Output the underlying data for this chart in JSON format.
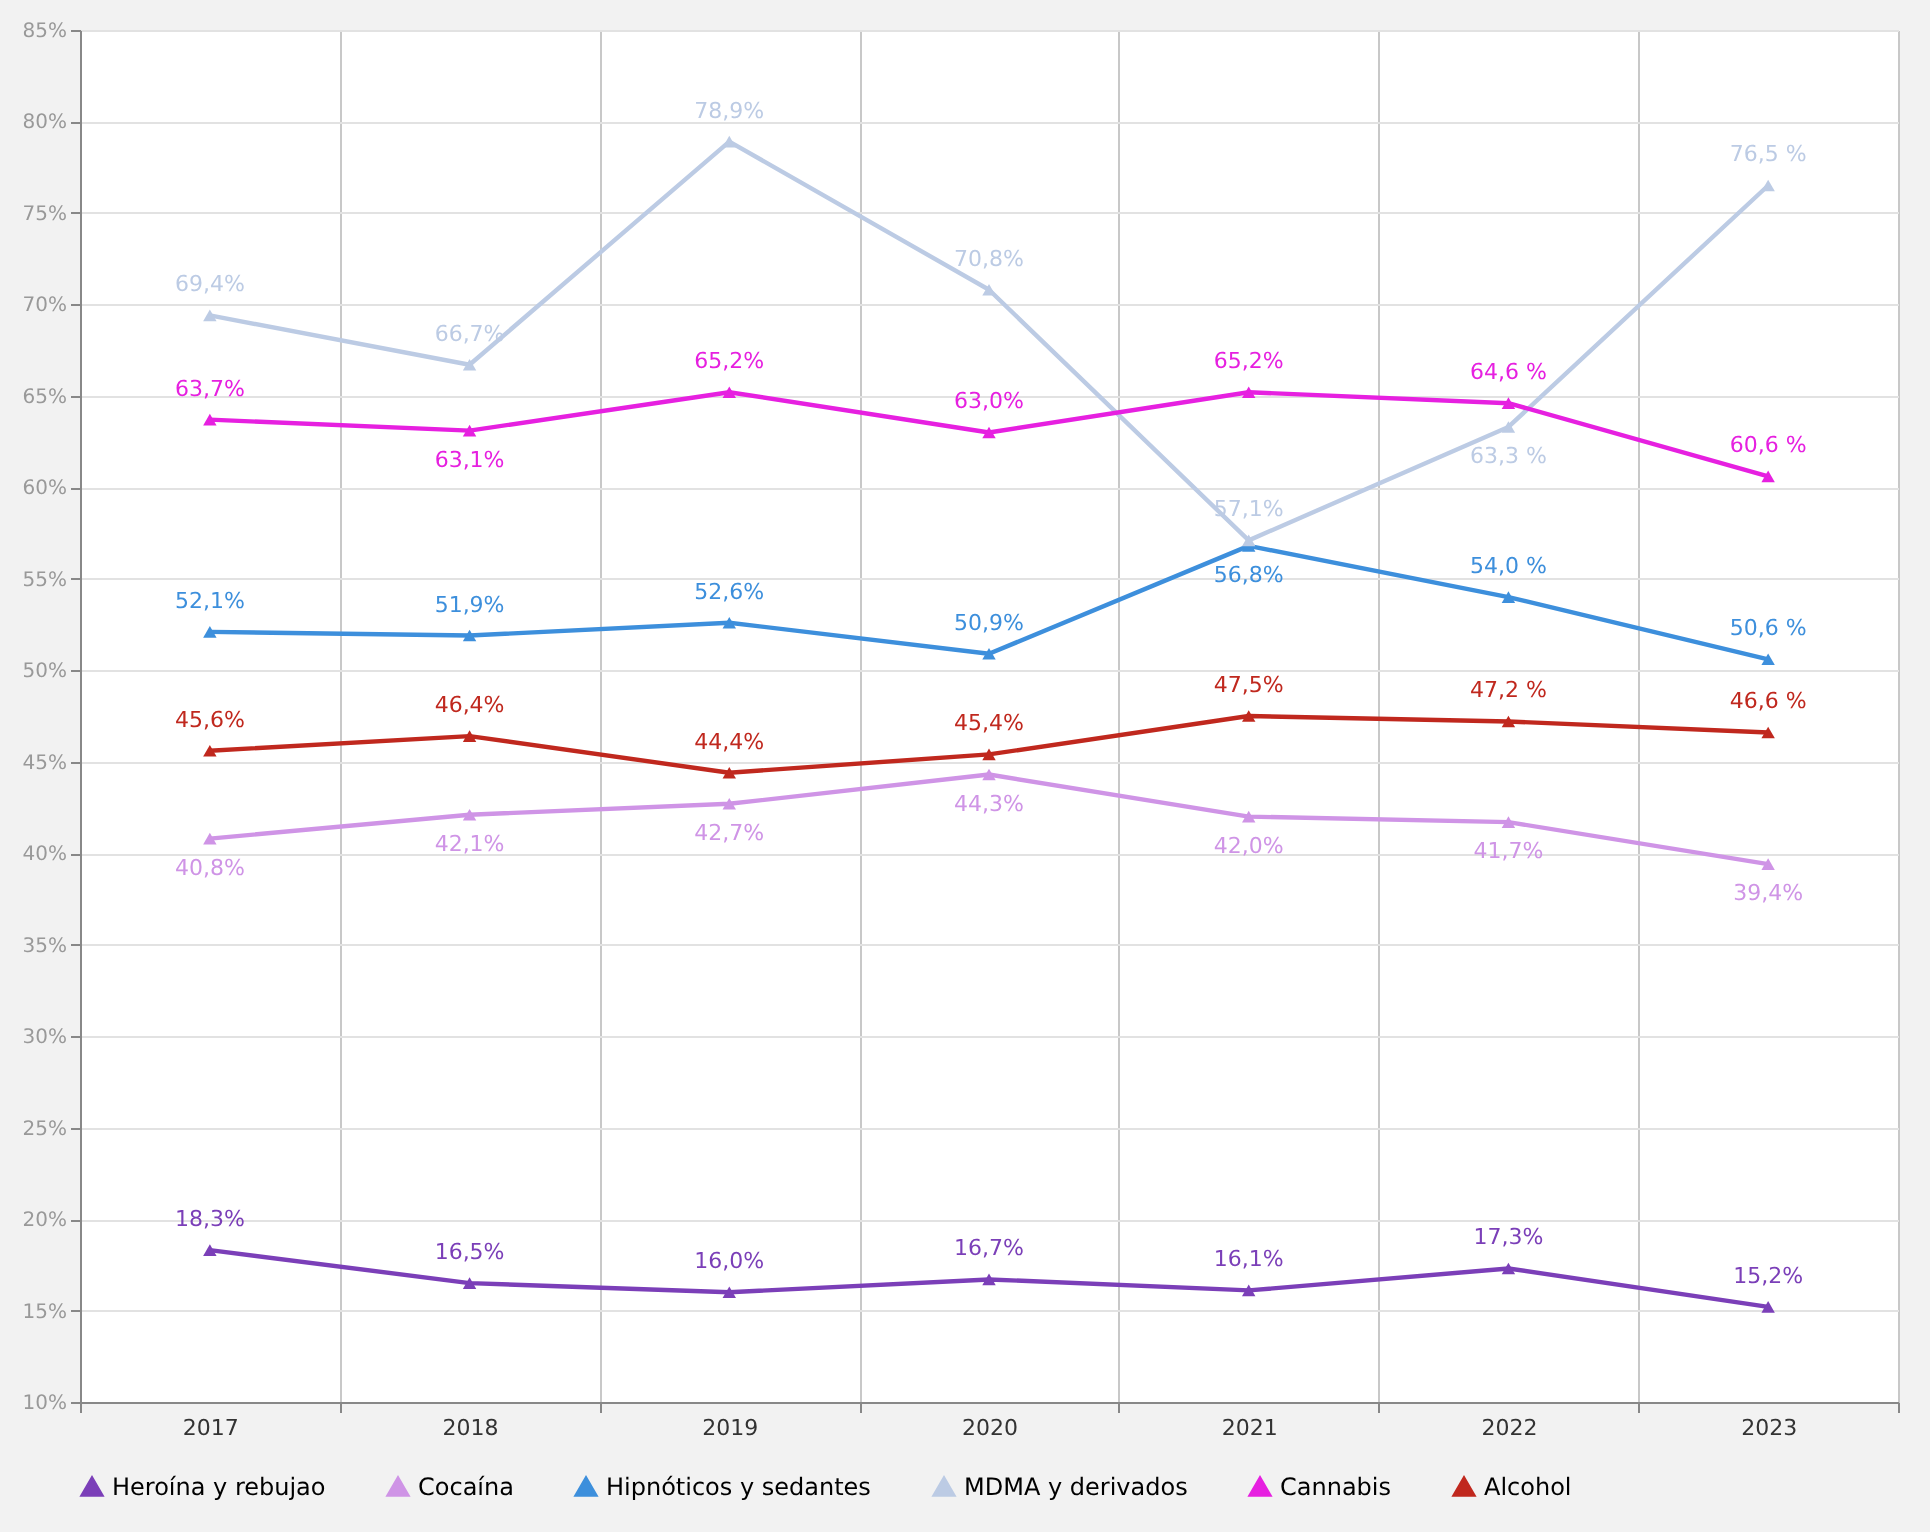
{
  "chart_data": {
    "type": "line",
    "categories": [
      "2017",
      "2018",
      "2019",
      "2020",
      "2021",
      "2022",
      "2023"
    ],
    "series": [
      {
        "name": "Heroína y rebujao",
        "color": "#7b3fb8",
        "values": [
          18.3,
          16.5,
          16.0,
          16.7,
          16.1,
          17.3,
          15.2
        ],
        "value_labels": [
          "18,3%",
          "16,5%",
          "16,0%",
          "16,7%",
          "16,1%",
          "17,3%",
          "15,2%"
        ]
      },
      {
        "name": "Cocaína",
        "color": "#cf94e6",
        "values": [
          40.8,
          42.1,
          42.7,
          44.3,
          42.0,
          41.7,
          39.4
        ],
        "value_labels": [
          "40,8%",
          "42,1%",
          "42,7%",
          "44,3%",
          "42,0%",
          "41,7%",
          "39,4%"
        ]
      },
      {
        "name": "Hipnóticos y sedantes",
        "color": "#3d8fdc",
        "values": [
          52.1,
          51.9,
          52.6,
          50.9,
          56.8,
          54.0,
          50.6
        ],
        "value_labels": [
          "52,1%",
          "51,9%",
          "52,6%",
          "50,9%",
          "56,8%",
          "54,0 %",
          "50,6 %"
        ]
      },
      {
        "name": "MDMA y derivados",
        "color": "#bccbe4",
        "values": [
          69.4,
          66.7,
          78.9,
          70.8,
          57.1,
          63.3,
          76.5
        ],
        "value_labels": [
          "69,4%",
          "66,7%",
          "78,9%",
          "70,8%",
          "57,1%",
          "63,3 %",
          "76,5 %"
        ]
      },
      {
        "name": "Cannabis",
        "color": "#e620e0",
        "values": [
          63.7,
          63.1,
          65.2,
          63.0,
          65.2,
          64.6,
          60.6
        ],
        "value_labels": [
          "63,7%",
          "63,1%",
          "65,2%",
          "63,0%",
          "65,2%",
          "64,6 %",
          "60,6 %"
        ]
      },
      {
        "name": "Alcohol",
        "color": "#c0281e",
        "values": [
          45.6,
          46.4,
          44.4,
          45.4,
          47.5,
          47.2,
          46.6
        ],
        "value_labels": [
          "45,6%",
          "46,4%",
          "44,4%",
          "45,4%",
          "47,5%",
          "47,2 %",
          "46,6 %"
        ]
      }
    ],
    "ylim": [
      10,
      85
    ],
    "yticks": [
      {
        "value": 10,
        "label": "10%"
      },
      {
        "value": 15,
        "label": "15%"
      },
      {
        "value": 20,
        "label": "20%"
      },
      {
        "value": 25,
        "label": "25%"
      },
      {
        "value": 30,
        "label": "30%"
      },
      {
        "value": 35,
        "label": "35%"
      },
      {
        "value": 40,
        "label": "40%"
      },
      {
        "value": 45,
        "label": "45%"
      },
      {
        "value": 50,
        "label": "50%"
      },
      {
        "value": 55,
        "label": "55%"
      },
      {
        "value": 60,
        "label": "60%"
      },
      {
        "value": 65,
        "label": "65%"
      },
      {
        "value": 70,
        "label": "70%"
      },
      {
        "value": 75,
        "label": "75%"
      },
      {
        "value": 80,
        "label": "80%"
      },
      {
        "value": 85,
        "label": "85%"
      }
    ],
    "grid": true,
    "legend": "bottom",
    "marker": "triangle",
    "line_style": "solid"
  }
}
